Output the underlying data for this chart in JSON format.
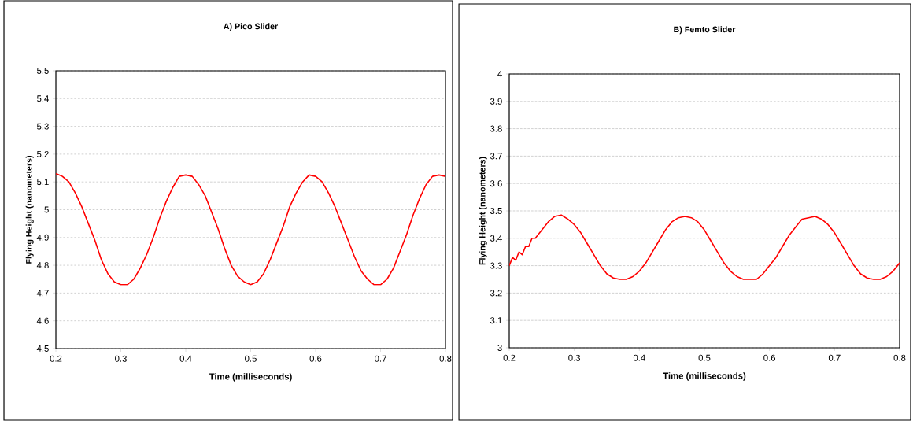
{
  "chart_data": [
    {
      "type": "line",
      "title": "A) Pico Slider",
      "xlabel": "Time (milliseconds)",
      "ylabel": "Flying Height (nanometers)",
      "x": [
        0.2,
        0.21,
        0.22,
        0.23,
        0.24,
        0.25,
        0.26,
        0.27,
        0.28,
        0.29,
        0.3,
        0.31,
        0.32,
        0.33,
        0.34,
        0.35,
        0.36,
        0.37,
        0.38,
        0.39,
        0.4,
        0.41,
        0.42,
        0.43,
        0.44,
        0.45,
        0.46,
        0.47,
        0.48,
        0.49,
        0.5,
        0.51,
        0.52,
        0.53,
        0.54,
        0.55,
        0.56,
        0.57,
        0.58,
        0.59,
        0.6,
        0.61,
        0.62,
        0.63,
        0.64,
        0.65,
        0.66,
        0.67,
        0.68,
        0.69,
        0.7,
        0.71,
        0.72,
        0.73,
        0.74,
        0.75,
        0.76,
        0.77,
        0.78,
        0.79,
        0.8
      ],
      "series": [
        {
          "color": "#ff0000",
          "values": [
            5.13,
            5.12,
            5.1,
            5.06,
            5.01,
            4.95,
            4.89,
            4.82,
            4.77,
            4.74,
            4.73,
            4.73,
            4.75,
            4.79,
            4.84,
            4.9,
            4.97,
            5.03,
            5.08,
            5.12,
            5.125,
            5.12,
            5.09,
            5.05,
            4.99,
            4.93,
            4.86,
            4.8,
            4.76,
            4.74,
            4.73,
            4.74,
            4.77,
            4.82,
            4.88,
            4.94,
            5.01,
            5.06,
            5.1,
            5.125,
            5.12,
            5.1,
            5.06,
            5.01,
            4.95,
            4.89,
            4.83,
            4.78,
            4.75,
            4.73,
            4.73,
            4.75,
            4.79,
            4.85,
            4.91,
            4.98,
            5.04,
            5.09,
            5.12,
            5.125,
            5.12
          ]
        }
      ],
      "xlim": [
        0.2,
        0.8
      ],
      "ylim": [
        4.5,
        5.5
      ],
      "xticks": [
        0.2,
        0.3,
        0.4,
        0.5,
        0.6,
        0.7,
        0.8
      ],
      "yticks": [
        4.5,
        4.6,
        4.7,
        4.8,
        4.9,
        5,
        5.1,
        5.2,
        5.3,
        5.4,
        5.5
      ],
      "grid": "y"
    },
    {
      "type": "line",
      "title": "B) Femto Slider",
      "xlabel": "Time (milliseconds)",
      "ylabel": "Flying Height (nanometers)",
      "x": [
        0.2,
        0.205,
        0.21,
        0.215,
        0.22,
        0.225,
        0.23,
        0.235,
        0.24,
        0.25,
        0.26,
        0.27,
        0.28,
        0.29,
        0.3,
        0.31,
        0.32,
        0.33,
        0.34,
        0.35,
        0.36,
        0.37,
        0.38,
        0.39,
        0.4,
        0.41,
        0.42,
        0.43,
        0.44,
        0.45,
        0.46,
        0.47,
        0.48,
        0.49,
        0.5,
        0.51,
        0.52,
        0.53,
        0.54,
        0.55,
        0.56,
        0.57,
        0.58,
        0.59,
        0.6,
        0.61,
        0.62,
        0.63,
        0.64,
        0.65,
        0.66,
        0.67,
        0.68,
        0.69,
        0.7,
        0.71,
        0.72,
        0.73,
        0.74,
        0.75,
        0.76,
        0.77,
        0.78,
        0.79,
        0.8
      ],
      "series": [
        {
          "color": "#ff0000",
          "values": [
            3.3,
            3.33,
            3.32,
            3.35,
            3.34,
            3.37,
            3.37,
            3.4,
            3.4,
            3.43,
            3.46,
            3.48,
            3.485,
            3.47,
            3.45,
            3.42,
            3.38,
            3.34,
            3.3,
            3.27,
            3.255,
            3.25,
            3.25,
            3.26,
            3.28,
            3.31,
            3.35,
            3.39,
            3.43,
            3.46,
            3.475,
            3.48,
            3.475,
            3.46,
            3.43,
            3.39,
            3.35,
            3.31,
            3.28,
            3.26,
            3.25,
            3.25,
            3.25,
            3.27,
            3.3,
            3.33,
            3.37,
            3.41,
            3.44,
            3.47,
            3.475,
            3.48,
            3.47,
            3.45,
            3.42,
            3.38,
            3.34,
            3.3,
            3.27,
            3.255,
            3.25,
            3.25,
            3.26,
            3.28,
            3.31
          ]
        }
      ],
      "xlim": [
        0.2,
        0.8
      ],
      "ylim": [
        3,
        4
      ],
      "xticks": [
        0.2,
        0.3,
        0.4,
        0.5,
        0.6,
        0.7,
        0.8
      ],
      "yticks": [
        3,
        3.1,
        3.2,
        3.3,
        3.4,
        3.5,
        3.6,
        3.7,
        3.8,
        3.9,
        4
      ],
      "grid": "y"
    }
  ]
}
